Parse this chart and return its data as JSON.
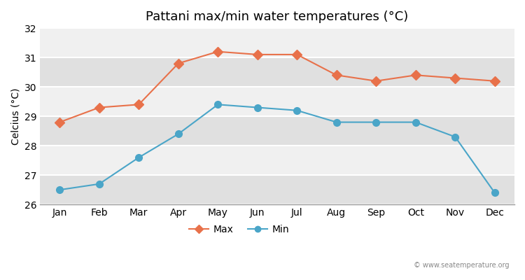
{
  "months": [
    "Jan",
    "Feb",
    "Mar",
    "Apr",
    "May",
    "Jun",
    "Jul",
    "Aug",
    "Sep",
    "Oct",
    "Nov",
    "Dec"
  ],
  "max_temps": [
    28.8,
    29.3,
    29.4,
    30.8,
    31.2,
    31.1,
    31.1,
    30.4,
    30.2,
    30.4,
    30.3,
    30.2
  ],
  "min_temps": [
    26.5,
    26.7,
    27.6,
    28.4,
    29.4,
    29.3,
    29.2,
    28.8,
    28.8,
    28.8,
    28.3,
    26.4
  ],
  "max_color": "#e8714a",
  "min_color": "#4aa5c8",
  "title": "Pattani max/min water temperatures (°C)",
  "ylabel": "Celcius (°C)",
  "ylim": [
    26,
    32
  ],
  "yticks": [
    26,
    27,
    28,
    29,
    30,
    31,
    32
  ],
  "fig_bg_color": "#ffffff",
  "band_color_light": "#f0f0f0",
  "band_color_dark": "#e0e0e0",
  "watermark": "© www.seatemperature.org",
  "legend_max": "Max",
  "legend_min": "Min"
}
